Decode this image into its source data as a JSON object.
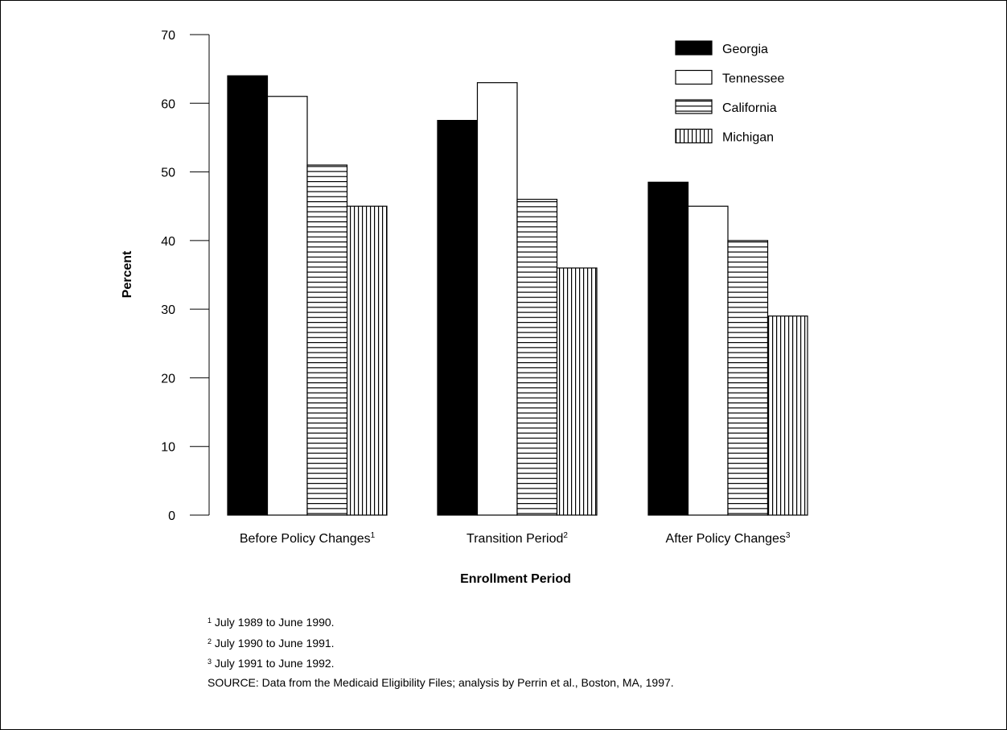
{
  "chart_data": {
    "type": "bar",
    "categories": [
      "Before Policy Changes",
      "Transition Period",
      "After Policy Changes"
    ],
    "category_footnote_marks": [
      "1",
      "2",
      "3"
    ],
    "series": [
      {
        "name": "Georgia",
        "values": [
          64,
          57.5,
          48.5
        ],
        "fill": "solid-black"
      },
      {
        "name": "Tennessee",
        "values": [
          61,
          63,
          45
        ],
        "fill": "white"
      },
      {
        "name": "California",
        "values": [
          51,
          46,
          40
        ],
        "fill": "horizontal-stripes"
      },
      {
        "name": "Michigan",
        "values": [
          45,
          36,
          29
        ],
        "fill": "vertical-stripes"
      }
    ],
    "xlabel": "Enrollment Period",
    "ylabel": "Percent",
    "ylim": [
      0,
      70
    ],
    "yticks": [
      0,
      10,
      20,
      30,
      40,
      50,
      60,
      70
    ],
    "grid": false,
    "legend_position": "top-right",
    "colors": {
      "bar_stroke": "#000000",
      "solid": "#000000",
      "background": "#ffffff"
    }
  },
  "footnotes": [
    {
      "mark": "1",
      "text": "July 1989 to June 1990."
    },
    {
      "mark": "2",
      "text": "July 1990 to June 1991."
    },
    {
      "mark": "3",
      "text": "July 1991 to June 1992."
    }
  ],
  "source": "SOURCE: Data from the Medicaid Eligibility Files; analysis by Perrin et al., Boston, MA, 1997."
}
